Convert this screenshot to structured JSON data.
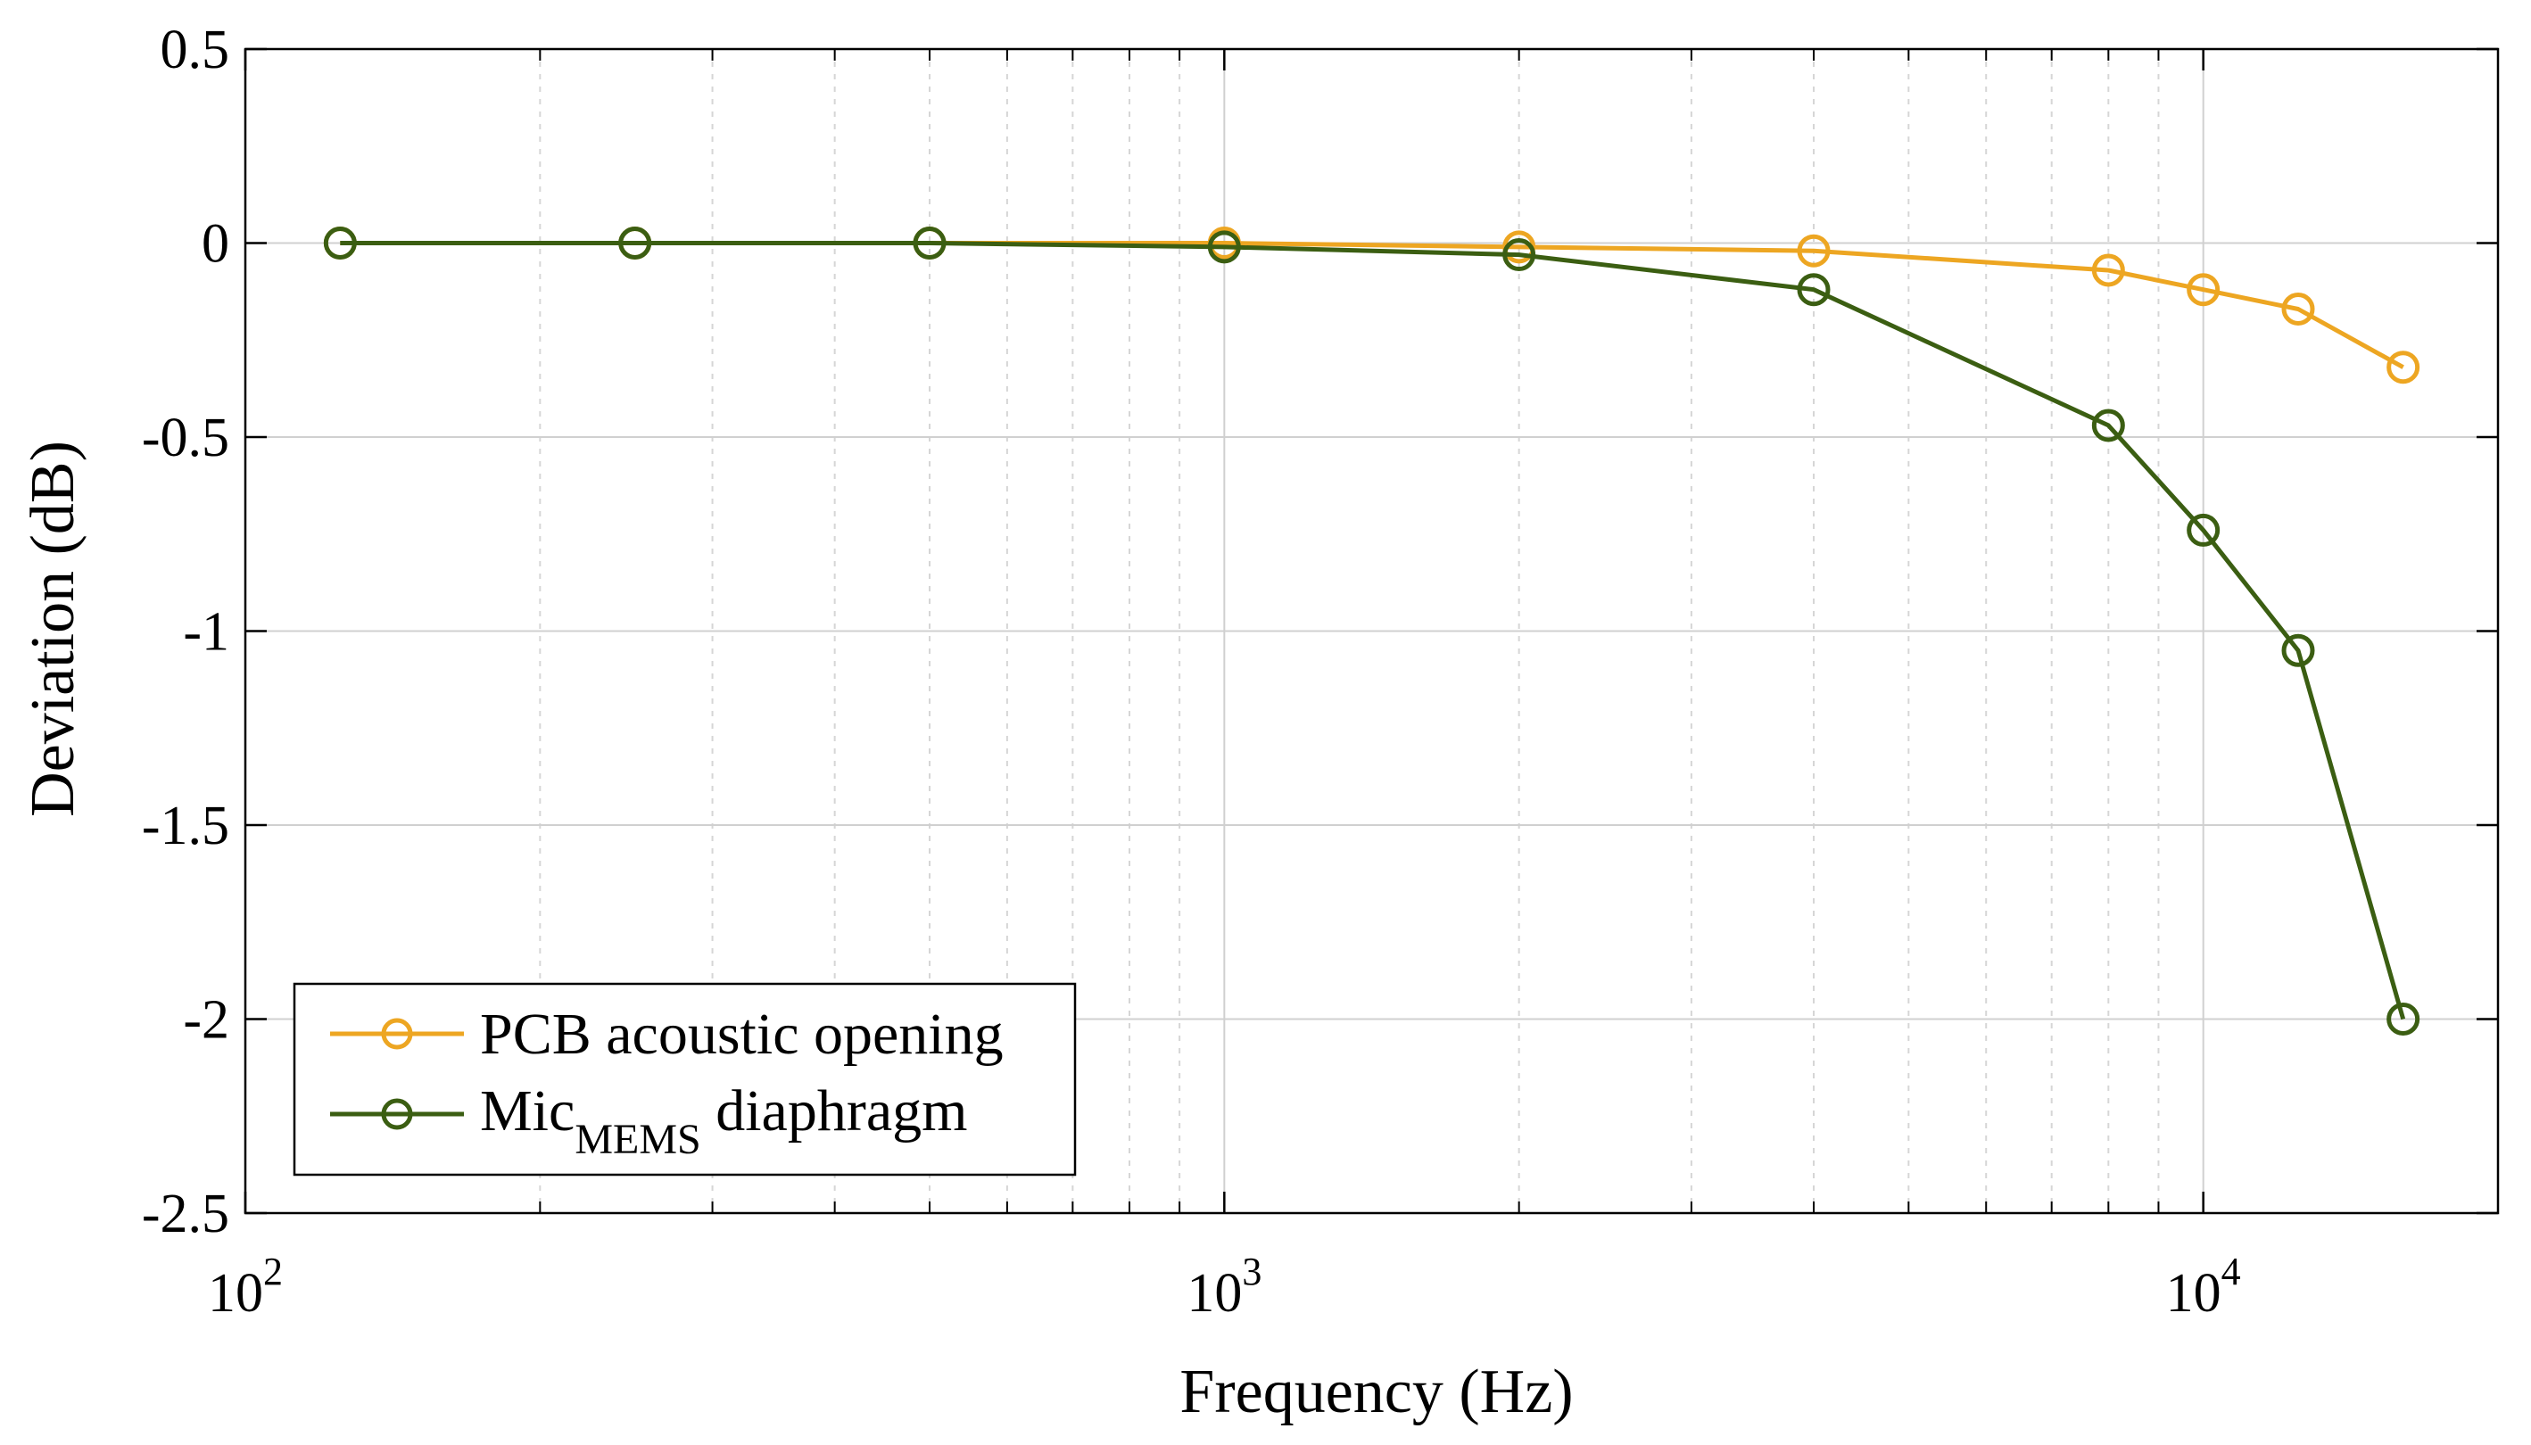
{
  "chart_data": {
    "type": "line",
    "xscale": "log",
    "xlabel": "Frequency (Hz)",
    "ylabel": "Deviation (dB)",
    "xlim": [
      100,
      20000
    ],
    "ylim": [
      -2.5,
      0.5
    ],
    "grid": true,
    "legend_position": "bottom-left",
    "x_ticks": [
      {
        "value": 100,
        "base": "10",
        "exp": "2"
      },
      {
        "value": 1000,
        "base": "10",
        "exp": "3"
      },
      {
        "value": 10000,
        "base": "10",
        "exp": "4"
      }
    ],
    "y_ticks": [
      {
        "value": 0.5,
        "label": "0.5"
      },
      {
        "value": 0,
        "label": "0"
      },
      {
        "value": -0.5,
        "label": "-0.5"
      },
      {
        "value": -1,
        "label": "-1"
      },
      {
        "value": -1.5,
        "label": "-1.5"
      },
      {
        "value": -2,
        "label": "-2"
      },
      {
        "value": -2.5,
        "label": "-2.5"
      }
    ],
    "x": [
      125,
      250,
      500,
      1000,
      2000,
      4000,
      8000,
      10000,
      12500,
      16000
    ],
    "series": [
      {
        "name": "PCB acoustic opening",
        "label_main": "PCB acoustic opening",
        "color": "#EDA622",
        "values": [
          0,
          0,
          0,
          0,
          -0.01,
          -0.02,
          -0.07,
          -0.12,
          -0.17,
          -0.32
        ]
      },
      {
        "name": "Mic MEMS diaphragm",
        "label_main": "Mic",
        "label_sub": "MEMS",
        "label_rest": " diaphragm",
        "color": "#3B5E12",
        "values": [
          0,
          0,
          0,
          -0.01,
          -0.03,
          -0.12,
          -0.47,
          -0.74,
          -1.05,
          -2.0
        ]
      }
    ]
  }
}
